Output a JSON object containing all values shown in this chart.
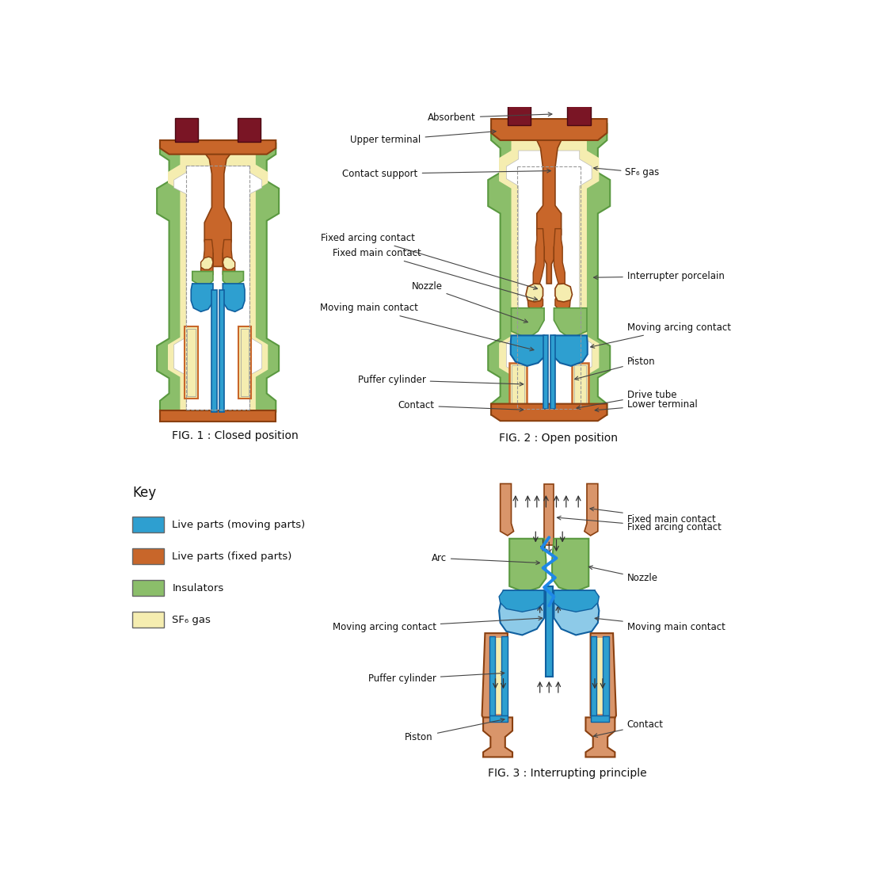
{
  "fig1_caption": "FIG. 1 : Closed position",
  "fig2_caption": "FIG. 2 : Open position",
  "fig3_caption": "FIG. 3 : Interrupting principle",
  "key_title": "Key",
  "key_items": [
    {
      "color": "#2E9FD0",
      "label": "Live parts (moving parts)"
    },
    {
      "color": "#C8662A",
      "label": "Live parts (fixed parts)"
    },
    {
      "color": "#8BBE6A",
      "label": "Insulators"
    },
    {
      "color": "#F5EDB0",
      "label": "SF₆ gas"
    }
  ],
  "colors": {
    "blue": "#2E9FD0",
    "blue_light": "#8DCAE8",
    "orange": "#C8662A",
    "orange_light": "#D9956A",
    "green": "#8BBE6A",
    "green_dark": "#5A9940",
    "yellow": "#F5EDB0",
    "dark_red": "#7A1525",
    "outline": "#666666",
    "orange_dark": "#8A4010",
    "blue_dark": "#1060A0",
    "arrow": "#444444"
  }
}
